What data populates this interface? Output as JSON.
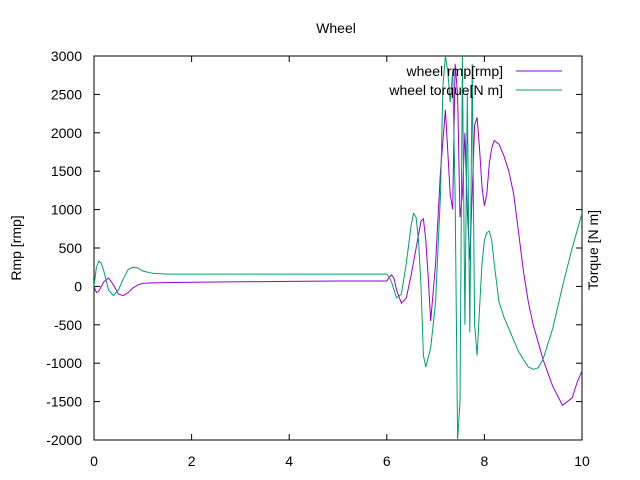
{
  "chart_data": {
    "type": "line",
    "title": "Wheel",
    "xlabel": "",
    "ylabel": "Rmp [rmp]",
    "y2label": "Torque [N m]",
    "xlim": [
      0,
      10
    ],
    "ylim": [
      -2000,
      3000
    ],
    "xticks": [
      "0",
      "2",
      "4",
      "6",
      "8",
      "10"
    ],
    "yticks": [
      "3000",
      "2500",
      "2000",
      "1500",
      "1000",
      "500",
      "0",
      "-500",
      "-1000",
      "-1500",
      "-2000"
    ],
    "grid": false,
    "legend_position": "top-right",
    "series": [
      {
        "name": "wheel rmp[rmp]",
        "color": "#9400d3",
        "x": [
          0,
          0.05,
          0.1,
          0.2,
          0.3,
          0.4,
          0.5,
          0.6,
          0.7,
          0.8,
          0.9,
          1.0,
          1.2,
          1.5,
          2.0,
          3.0,
          4.0,
          5.0,
          6.0,
          6.05,
          6.1,
          6.15,
          6.2,
          6.3,
          6.4,
          6.5,
          6.6,
          6.7,
          6.75,
          6.8,
          6.85,
          6.9,
          7.0,
          7.1,
          7.2,
          7.3,
          7.35,
          7.4,
          7.45,
          7.5,
          7.55,
          7.6,
          7.65,
          7.7,
          7.75,
          7.8,
          7.85,
          7.9,
          7.95,
          8.0,
          8.05,
          8.1,
          8.15,
          8.2,
          8.3,
          8.4,
          8.5,
          8.6,
          8.7,
          8.8,
          8.9,
          9.0,
          9.2,
          9.4,
          9.6,
          9.8,
          9.9,
          10.0
        ],
        "y": [
          0,
          -80,
          -60,
          60,
          110,
          20,
          -100,
          -120,
          -80,
          -20,
          20,
          40,
          45,
          50,
          55,
          60,
          65,
          70,
          70,
          120,
          150,
          100,
          -50,
          -220,
          -150,
          150,
          500,
          850,
          880,
          600,
          100,
          -450,
          300,
          1500,
          2300,
          1200,
          1000,
          2900,
          2500,
          900,
          1200,
          2000,
          1000,
          350,
          1200,
          2100,
          2200,
          1800,
          1300,
          1050,
          1200,
          1600,
          1800,
          1900,
          1850,
          1700,
          1500,
          1200,
          700,
          200,
          -200,
          -500,
          -950,
          -1300,
          -1550,
          -1450,
          -1250,
          -1100
        ]
      },
      {
        "name": "wheel torque[N m]",
        "color": "#009e73",
        "x": [
          0,
          0.05,
          0.1,
          0.15,
          0.2,
          0.3,
          0.4,
          0.5,
          0.6,
          0.7,
          0.8,
          0.9,
          1.0,
          1.2,
          1.5,
          2.0,
          3.0,
          4.0,
          5.0,
          6.0,
          6.05,
          6.1,
          6.15,
          6.2,
          6.3,
          6.4,
          6.5,
          6.55,
          6.6,
          6.65,
          6.7,
          6.75,
          6.8,
          6.9,
          7.0,
          7.1,
          7.15,
          7.2,
          7.25,
          7.3,
          7.35,
          7.4,
          7.45,
          7.5,
          7.55,
          7.6,
          7.65,
          7.7,
          7.75,
          7.8,
          7.85,
          7.9,
          7.95,
          8.0,
          8.05,
          8.1,
          8.15,
          8.2,
          8.3,
          8.4,
          8.5,
          8.6,
          8.7,
          8.8,
          8.9,
          9.0,
          9.1,
          9.2,
          9.4,
          9.6,
          9.8,
          10.0
        ],
        "y": [
          0,
          250,
          330,
          300,
          200,
          -50,
          -120,
          -50,
          100,
          220,
          250,
          240,
          200,
          170,
          160,
          160,
          160,
          160,
          160,
          160,
          120,
          50,
          -50,
          -150,
          -100,
          300,
          800,
          950,
          900,
          600,
          0,
          -900,
          -1050,
          -800,
          -200,
          1200,
          2600,
          3000,
          2800,
          2400,
          2800,
          1200,
          -2000,
          -1500,
          3000,
          -500,
          2500,
          -600,
          2900,
          -500,
          -900,
          -300,
          300,
          600,
          700,
          720,
          600,
          300,
          -200,
          -400,
          -550,
          -700,
          -850,
          -950,
          -1050,
          -1080,
          -1060,
          -950,
          -550,
          0,
          500,
          950
        ]
      }
    ]
  }
}
